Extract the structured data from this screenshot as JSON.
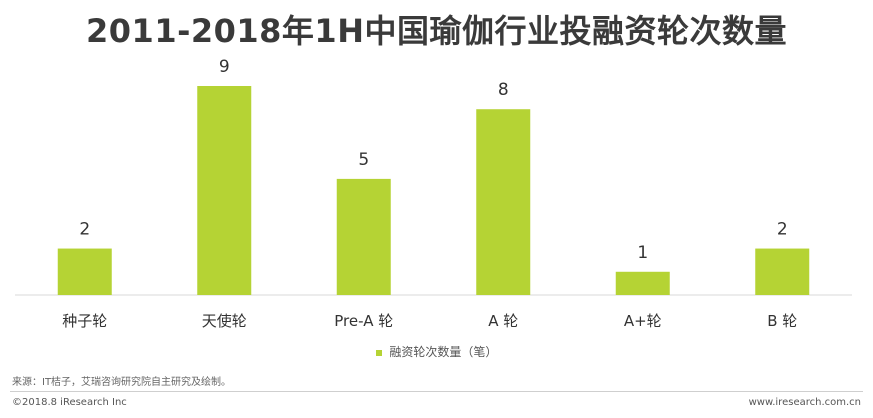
{
  "title": "2011-2018年1H中国瑜伽行业投融资轮次数量",
  "legend_label": "融资轮次数量（笔）",
  "source": "来源：IT桔子，艾瑞咨询研究院自主研究及绘制。",
  "copyright": "©2018.8 iResearch Inc",
  "website": "www.iresearch.com.cn",
  "colors": {
    "bar": "#b5d334",
    "axis": "#d9d9d9"
  },
  "chart_data": {
    "type": "bar",
    "categories": [
      "种子轮",
      "天使轮",
      "Pre-A 轮",
      "A 轮",
      "A+轮",
      "B 轮"
    ],
    "series": [
      {
        "name": "融资轮次数量（笔）",
        "values": [
          2,
          9,
          5,
          8,
          1,
          2
        ]
      }
    ],
    "ylim": [
      0,
      9
    ],
    "grid": false,
    "legend": "bottom"
  }
}
